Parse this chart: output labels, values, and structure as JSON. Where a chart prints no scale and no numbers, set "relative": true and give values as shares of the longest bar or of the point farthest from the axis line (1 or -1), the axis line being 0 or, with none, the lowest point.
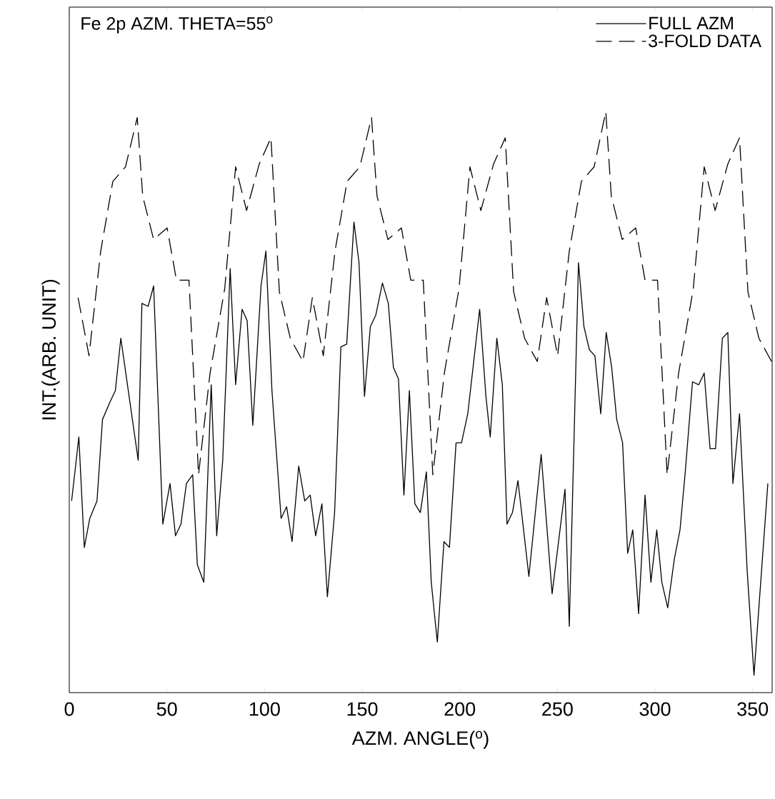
{
  "chart_data": {
    "type": "line",
    "title": "Fe 2p AZM. THETA=55$^{o}$",
    "xlabel": "AZM. ANGLE($^{o}$)",
    "ylabel": "INT.(ARB. UNIT)",
    "relative": true,
    "xlim": [
      0,
      360
    ],
    "xticks": [
      0,
      50,
      100,
      150,
      200,
      250,
      300,
      350
    ],
    "legend": "top right",
    "marker": "none",
    "series": [
      {
        "name": "FULL AZM",
        "color": "#000000",
        "line_style": "solid",
        "x": [
          1.2,
          4.9,
          7.7,
          10.5,
          14.2,
          17.0,
          20.8,
          23.6,
          26.4,
          35.3,
          37.2,
          40.4,
          43.2,
          47.9,
          51.6,
          54.4,
          57.2,
          60.0,
          63.2,
          65.6,
          68.9,
          72.7,
          75.5,
          78.6,
          82.4,
          85.2,
          88.5,
          91.1,
          94.0,
          98.2,
          100.7,
          103.8,
          108.5,
          111.3,
          114.1,
          117.5,
          120.6,
          123.4,
          126.2,
          129.4,
          132.2,
          135.9,
          139.1,
          142.1,
          145.8,
          148.4,
          151.2,
          154.2,
          157.0,
          160.4,
          163.4,
          166.0,
          168.6,
          171.4,
          174.2,
          177.0,
          179.8,
          182.9,
          185.4,
          188.5,
          191.9,
          194.7,
          198.1,
          200.9,
          204.1,
          210.2,
          213.4,
          215.6,
          219.0,
          221.8,
          224.2,
          227.0,
          229.8,
          235.4,
          241.7,
          247.3,
          253.9,
          256.1,
          260.8,
          263.6,
          266.4,
          269.2,
          272.2,
          275.0,
          277.8,
          280.4,
          283.4,
          286.0,
          288.6,
          291.6,
          294.9,
          297.9,
          300.9,
          303.5,
          306.5,
          309.9,
          312.8,
          315.5,
          319.2,
          322.4,
          325.2,
          328.2,
          331.0,
          334.5,
          337.3,
          339.9,
          343.3,
          347.2,
          350.7,
          357.8
        ],
        "values": [
          0.33,
          0.44,
          0.25,
          0.3,
          0.33,
          0.47,
          0.5,
          0.52,
          0.61,
          0.4,
          0.67,
          0.665,
          0.7,
          0.29,
          0.36,
          0.27,
          0.29,
          0.36,
          0.375,
          0.22,
          0.19,
          0.53,
          0.27,
          0.4,
          0.73,
          0.53,
          0.66,
          0.64,
          0.46,
          0.7,
          0.76,
          0.52,
          0.3,
          0.32,
          0.26,
          0.39,
          0.33,
          0.34,
          0.27,
          0.325,
          0.165,
          0.31,
          0.595,
          0.6,
          0.81,
          0.74,
          0.51,
          0.63,
          0.65,
          0.705,
          0.67,
          0.56,
          0.54,
          0.34,
          0.52,
          0.325,
          0.31,
          0.38,
          0.19,
          0.087,
          0.26,
          0.25,
          0.43,
          0.43,
          0.48,
          0.66,
          0.51,
          0.44,
          0.61,
          0.53,
          0.29,
          0.31,
          0.365,
          0.2,
          0.41,
          0.17,
          0.35,
          0.114,
          0.74,
          0.63,
          0.59,
          0.58,
          0.48,
          0.62,
          0.56,
          0.47,
          0.43,
          0.24,
          0.28,
          0.136,
          0.34,
          0.19,
          0.28,
          0.19,
          0.146,
          0.23,
          0.28,
          0.38,
          0.535,
          0.53,
          0.55,
          0.42,
          0.42,
          0.61,
          0.62,
          0.36,
          0.48,
          0.21,
          0.03,
          0.36
        ]
      },
      {
        "name": "3-FOLD DATA",
        "color": "#000000",
        "line_style": "dashed",
        "x": [
          4.5,
          10.1,
          16.1,
          22.3,
          28.8,
          34.8,
          37.6,
          43.2,
          50.1,
          54.9,
          61.3,
          66.2,
          72.1,
          79.6,
          85.2,
          90.8,
          97.3,
          103.3,
          107.6,
          113.2,
          119.7,
          124.5,
          130.1,
          136.1,
          142.3,
          148.8,
          154.8,
          157.6,
          163.2,
          170.1,
          174.9,
          181.3,
          186.2,
          192.1,
          199.6,
          205.2,
          210.8,
          217.3,
          223.3,
          227.6,
          233.2,
          239.7,
          244.5,
          250.1,
          256.1,
          262.3,
          268.8,
          274.8,
          277.6,
          283.2,
          290.1,
          294.9,
          301.3,
          306.2,
          312.1,
          319.6,
          325.2,
          330.8,
          337.3,
          343.3,
          347.6,
          353.2,
          359.7
        ],
        "values": [
          0.68,
          0.58,
          0.76,
          0.88,
          0.905,
          0.99,
          0.855,
          0.78,
          0.8,
          0.71,
          0.71,
          0.375,
          0.55,
          0.695,
          0.905,
          0.83,
          0.91,
          0.955,
          0.69,
          0.61,
          0.57,
          0.68,
          0.58,
          0.76,
          0.88,
          0.905,
          0.99,
          0.855,
          0.78,
          0.8,
          0.71,
          0.71,
          0.375,
          0.55,
          0.695,
          0.905,
          0.83,
          0.91,
          0.955,
          0.69,
          0.61,
          0.57,
          0.68,
          0.58,
          0.76,
          0.88,
          0.905,
          1.0,
          0.855,
          0.78,
          0.8,
          0.71,
          0.71,
          0.375,
          0.55,
          0.695,
          0.905,
          0.83,
          0.91,
          0.955,
          0.69,
          0.61,
          0.57
        ]
      }
    ]
  }
}
